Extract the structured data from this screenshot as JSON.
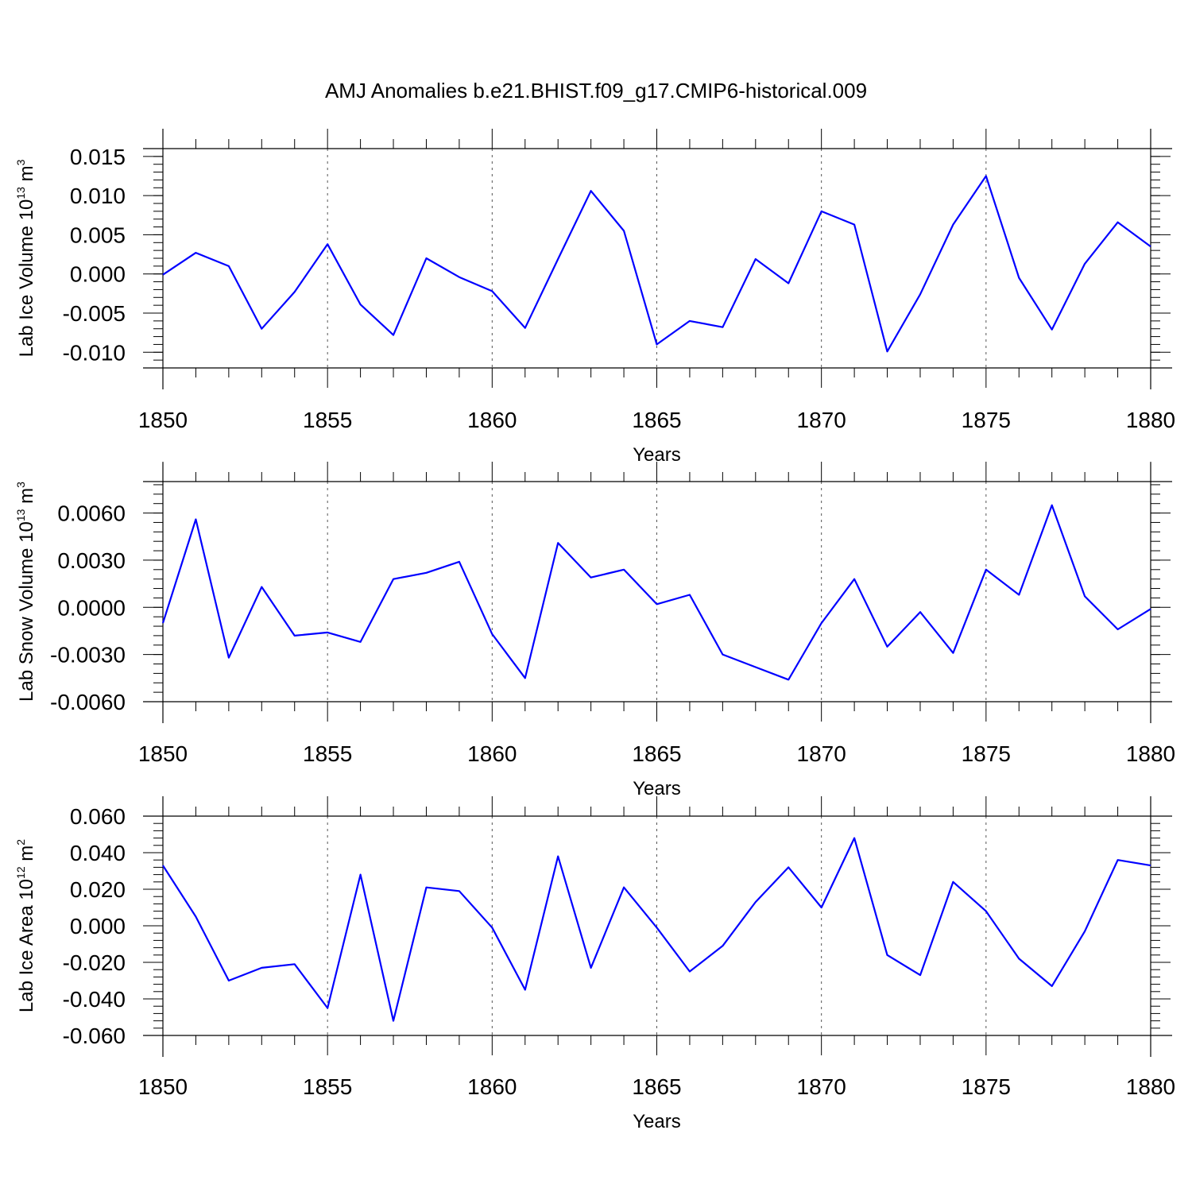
{
  "title": "AMJ Anomalies b.e21.BHIST.f09_g17.CMIP6-historical.009",
  "colors": {
    "line": "#0000ff",
    "axis": "#000000",
    "grid": "#555555"
  },
  "chart_data": [
    {
      "type": "line",
      "ylabel": "Lab Ice Volume 10",
      "ylabel_exp": "13",
      "ylabel_unit": " m",
      "ylabel_unit_exp": "3",
      "xlabel": "Years",
      "xlim": [
        1850,
        1880
      ],
      "ylim": [
        -0.012,
        0.016
      ],
      "yticks": [
        -0.01,
        -0.005,
        0.0,
        0.005,
        0.01,
        0.015
      ],
      "ytick_labels": [
        "-0.010",
        "-0.005",
        "0.000",
        "0.005",
        "0.010",
        "0.015"
      ],
      "yminor_step": 0.001,
      "xticks": [
        1850,
        1855,
        1860,
        1865,
        1870,
        1875,
        1880
      ],
      "xtick_labels": [
        "1850",
        "1855",
        "1860",
        "1865",
        "1870",
        "1875",
        "1880"
      ],
      "grid_x": true,
      "x": [
        1850,
        1851,
        1852,
        1853,
        1854,
        1855,
        1856,
        1857,
        1858,
        1859,
        1860,
        1861,
        1862,
        1863,
        1864,
        1865,
        1866,
        1867,
        1868,
        1869,
        1870,
        1871,
        1872,
        1873,
        1874,
        1875,
        1876,
        1877,
        1878,
        1879,
        1880
      ],
      "series": [
        {
          "name": "Lab Ice Volume",
          "values": [
            -0.0001,
            0.0027,
            0.001,
            -0.007,
            -0.0023,
            0.0038,
            -0.0039,
            -0.0078,
            0.002,
            -0.0004,
            -0.0022,
            -0.0069,
            0.0019,
            0.0106,
            0.0055,
            -0.009,
            -0.006,
            -0.0068,
            0.0019,
            -0.0012,
            0.008,
            0.0063,
            -0.0099,
            -0.0026,
            0.0063,
            0.0125,
            -0.0005,
            -0.0071,
            0.0013,
            0.0066,
            0.0035
          ]
        }
      ]
    },
    {
      "type": "line",
      "ylabel": "Lab Snow Volume 10",
      "ylabel_exp": "13",
      "ylabel_unit": " m",
      "ylabel_unit_exp": "3",
      "xlabel": "Years",
      "xlim": [
        1850,
        1880
      ],
      "ylim": [
        -0.006,
        0.008
      ],
      "yticks": [
        -0.006,
        -0.003,
        0.0,
        0.003,
        0.006
      ],
      "ytick_labels": [
        "-0.0060",
        "-0.0030",
        "0.0000",
        "0.0030",
        "0.0060"
      ],
      "yminor_step": 0.0006,
      "xticks": [
        1850,
        1855,
        1860,
        1865,
        1870,
        1875,
        1880
      ],
      "xtick_labels": [
        "1850",
        "1855",
        "1860",
        "1865",
        "1870",
        "1875",
        "1880"
      ],
      "grid_x": true,
      "x": [
        1850,
        1851,
        1852,
        1853,
        1854,
        1855,
        1856,
        1857,
        1858,
        1859,
        1860,
        1861,
        1862,
        1863,
        1864,
        1865,
        1866,
        1867,
        1868,
        1869,
        1870,
        1871,
        1872,
        1873,
        1874,
        1875,
        1876,
        1877,
        1878,
        1879,
        1880
      ],
      "series": [
        {
          "name": "Lab Snow Volume",
          "values": [
            -0.001,
            0.0056,
            -0.0032,
            0.0013,
            -0.0018,
            -0.0016,
            -0.0022,
            0.0018,
            0.0022,
            0.0029,
            -0.0017,
            -0.0045,
            0.0041,
            0.0019,
            0.0024,
            0.0002,
            0.0008,
            -0.003,
            -0.0038,
            -0.0046,
            -0.001,
            0.0018,
            -0.0025,
            -0.0003,
            -0.0029,
            0.0024,
            0.0008,
            0.0065,
            0.0007,
            -0.0014,
            -0.0001
          ]
        }
      ]
    },
    {
      "type": "line",
      "ylabel": "Lab Ice Area 10",
      "ylabel_exp": "12",
      "ylabel_unit": " m",
      "ylabel_unit_exp": "2",
      "xlabel": "Years",
      "xlim": [
        1850,
        1880
      ],
      "ylim": [
        -0.06,
        0.06
      ],
      "yticks": [
        -0.06,
        -0.04,
        -0.02,
        0.0,
        0.02,
        0.04,
        0.06
      ],
      "ytick_labels": [
        "-0.060",
        "-0.040",
        "-0.020",
        "0.000",
        "0.020",
        "0.040",
        "0.060"
      ],
      "yminor_step": 0.004,
      "xticks": [
        1850,
        1855,
        1860,
        1865,
        1870,
        1875,
        1880
      ],
      "xtick_labels": [
        "1850",
        "1855",
        "1860",
        "1865",
        "1870",
        "1875",
        "1880"
      ],
      "grid_x": true,
      "x": [
        1850,
        1851,
        1852,
        1853,
        1854,
        1855,
        1856,
        1857,
        1858,
        1859,
        1860,
        1861,
        1862,
        1863,
        1864,
        1865,
        1866,
        1867,
        1868,
        1869,
        1870,
        1871,
        1872,
        1873,
        1874,
        1875,
        1876,
        1877,
        1878,
        1879,
        1880
      ],
      "series": [
        {
          "name": "Lab Ice Area",
          "values": [
            0.033,
            0.005,
            -0.03,
            -0.023,
            -0.021,
            -0.045,
            0.028,
            -0.052,
            0.021,
            0.019,
            -0.001,
            -0.035,
            0.038,
            -0.023,
            0.021,
            -0.001,
            -0.025,
            -0.011,
            0.013,
            0.032,
            0.01,
            0.048,
            -0.016,
            -0.027,
            0.024,
            0.008,
            -0.018,
            -0.033,
            -0.003,
            0.036,
            0.033
          ]
        }
      ]
    }
  ]
}
